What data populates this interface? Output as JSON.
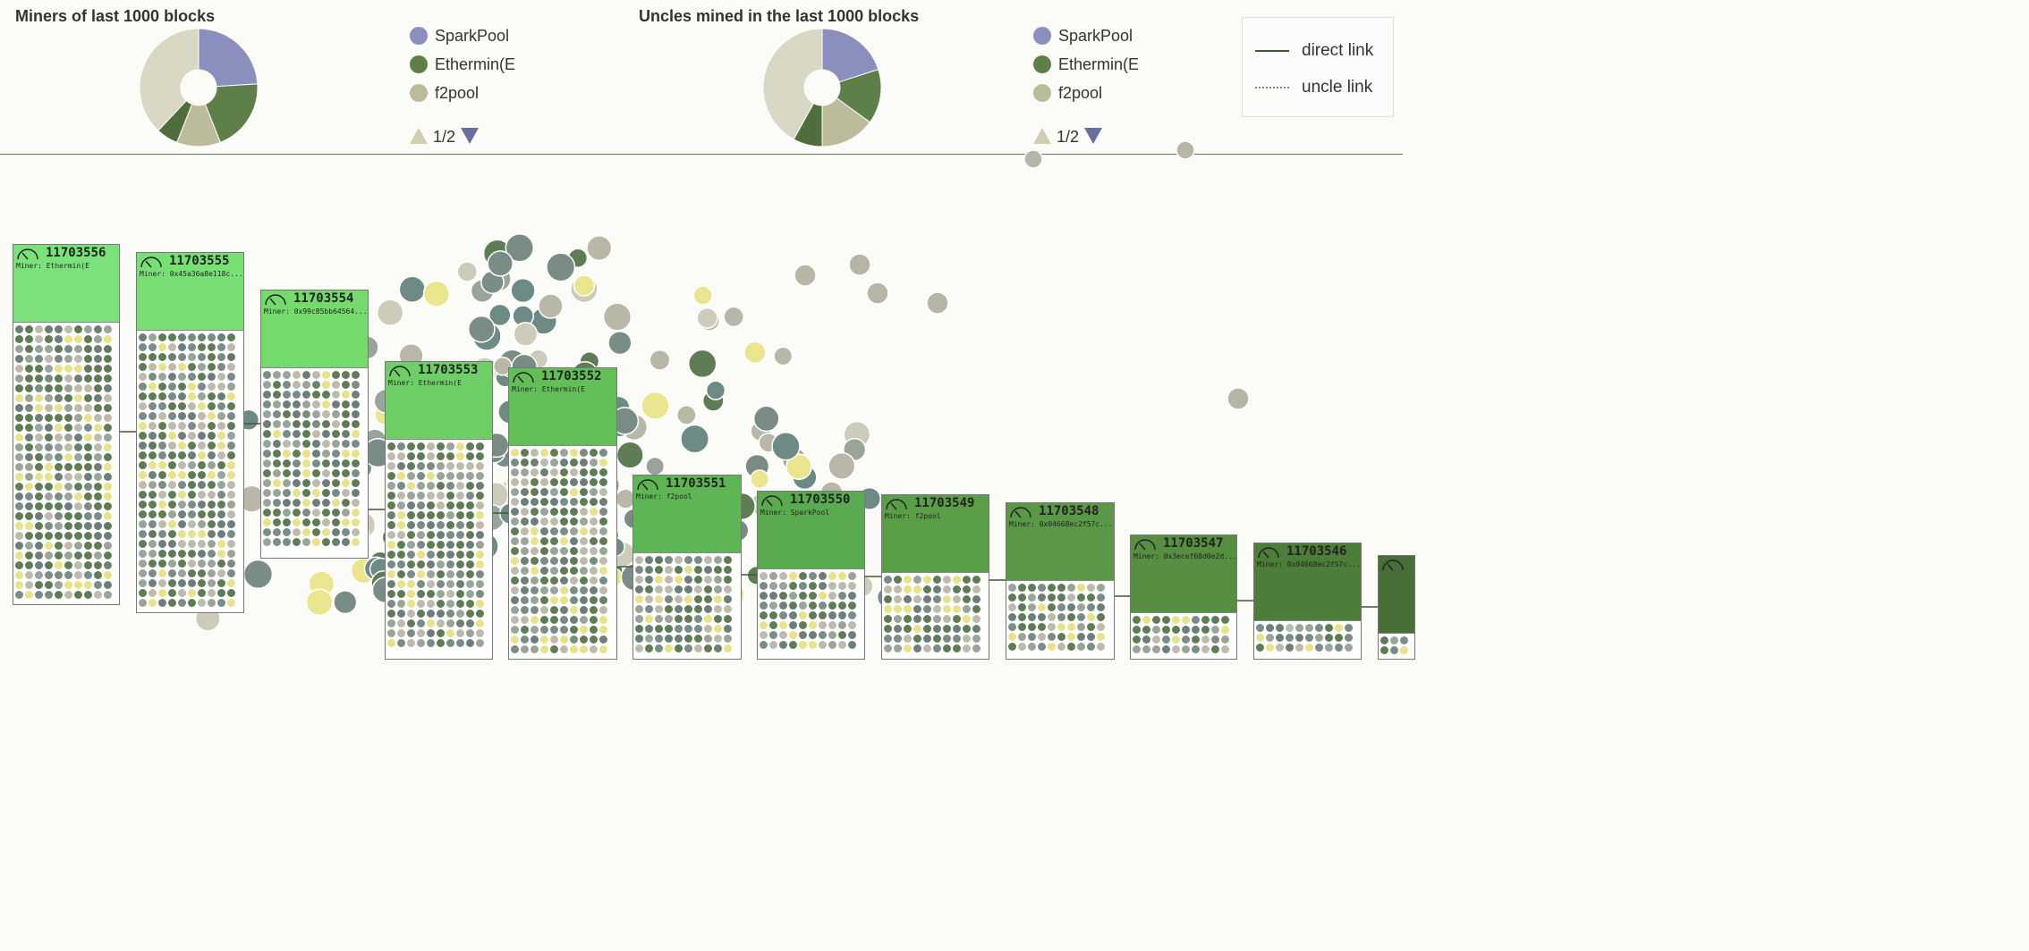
{
  "charts": {
    "miners": {
      "title": "Miners of last 1000 blocks",
      "legend": [
        "SparkPool",
        "Ethermin(E",
        "f2pool"
      ],
      "pager": "1/2",
      "chart_data": {
        "type": "pie",
        "title": "Miners of last 1000 blocks",
        "categories": [
          "SparkPool",
          "Ethermin(E",
          "f2pool",
          "other-1",
          "other-2"
        ],
        "values": [
          24,
          20,
          12,
          6,
          38
        ],
        "colors": [
          "#8a8fbd",
          "#5e7f48",
          "#bcbc9d",
          "#4f6e3b",
          "#d9d8c5"
        ]
      }
    },
    "uncles": {
      "title": "Uncles mined in the last 1000 blocks",
      "legend": [
        "SparkPool",
        "Ethermin(E",
        "f2pool"
      ],
      "pager": "1/2",
      "chart_data": {
        "type": "pie",
        "title": "Uncles mined in the last 1000 blocks",
        "categories": [
          "SparkPool",
          "Ethermin(E",
          "f2pool",
          "other-1",
          "other-2"
        ],
        "values": [
          20,
          15,
          15,
          8,
          42
        ],
        "colors": [
          "#8a8fbd",
          "#5e7f48",
          "#bcbc9d",
          "#4f6e3b",
          "#d9d8c5"
        ]
      }
    }
  },
  "legend_colors": [
    "#8a8fbd",
    "#5e7f48",
    "#bcbc9d"
  ],
  "link_legend": {
    "direct": "direct link",
    "uncle": "uncle link"
  },
  "blocks": [
    {
      "number": "11703556",
      "miner": "Miner: Ethermin(E",
      "color": "#7be27b"
    },
    {
      "number": "11703555",
      "miner": "Miner: 0x45a36a8e118c...",
      "color": "#78df74"
    },
    {
      "number": "11703554",
      "miner": "Miner: 0x99c85bb64564...",
      "color": "#74da6c"
    },
    {
      "number": "11703553",
      "miner": "Miner: Ethermin(E",
      "color": "#6ecf67"
    },
    {
      "number": "11703552",
      "miner": "Miner: Ethermin(E",
      "color": "#62bf58"
    },
    {
      "number": "11703551",
      "miner": "Miner: f2pool",
      "color": "#5db553"
    },
    {
      "number": "11703550",
      "miner": "Miner: SparkPool",
      "color": "#5aab4f"
    },
    {
      "number": "11703549",
      "miner": "Miner: f2pool",
      "color": "#5a9f48"
    },
    {
      "number": "11703548",
      "miner": "Miner: 0x04668ec2f57c...",
      "color": "#5a9746"
    },
    {
      "number": "11703547",
      "miner": "Miner: 0x3ecef08d0e2d...",
      "color": "#568e42"
    },
    {
      "number": "11703546",
      "miner": "Miner: 0x04668ec2f57c...",
      "color": "#4c7d39"
    },
    {
      "number": "",
      "miner": "",
      "color": "#476f35"
    }
  ]
}
